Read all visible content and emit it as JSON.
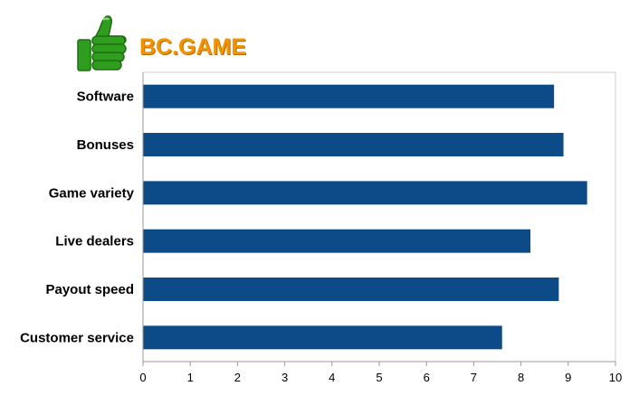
{
  "brand": {
    "name": "BC.GAME",
    "logo_icon": "thumbs-up-icon",
    "name_color": "#f29400",
    "logo_color": "#2f9e1f"
  },
  "chart_data": {
    "type": "bar",
    "orientation": "horizontal",
    "categories": [
      "Software",
      "Bonuses",
      "Game variety",
      "Live dealers",
      "Payout speed",
      "Customer service"
    ],
    "values": [
      8.7,
      8.9,
      9.4,
      8.2,
      8.8,
      7.6
    ],
    "xlim": [
      0,
      10
    ],
    "xticks": [
      "0",
      "1",
      "2",
      "3",
      "4",
      "5",
      "6",
      "7",
      "8",
      "9",
      "10"
    ],
    "bar_color": "#0c4a88",
    "grid": false,
    "legend": "none"
  }
}
